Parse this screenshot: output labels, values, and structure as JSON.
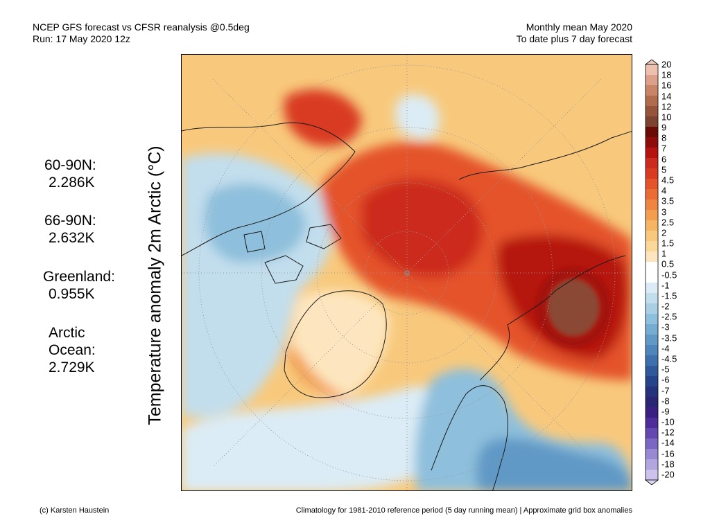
{
  "header": {
    "line1_left": "NCEP GFS forecast vs CFSR reanalysis @0.5deg",
    "line2_left": "Run: 17 May 2020 12z",
    "line1_right": "Monthly mean May 2020",
    "line2_right": "To date plus 7 day forecast"
  },
  "y_label": "Temperature anomaly 2m Arctic (°C)",
  "stats": [
    {
      "region": "60-90N:",
      "value": "2.286K"
    },
    {
      "region": "66-90N:",
      "value": "2.632K"
    },
    {
      "region": "Greenland:",
      "value": "0.955K"
    },
    {
      "region_line1": "Arctic",
      "region_line2": "Ocean:",
      "value": "2.729K"
    }
  ],
  "colorbar": {
    "labels": [
      "20",
      "18",
      "16",
      "14",
      "12",
      "10",
      "9",
      "8",
      "7",
      "6",
      "5",
      "4.5",
      "4",
      "3.5",
      "3",
      "2.5",
      "2",
      "1.5",
      "1",
      "0.5",
      "-0.5",
      "-1",
      "-1.5",
      "-2",
      "-2.5",
      "-3",
      "-3.5",
      "-4",
      "-4.5",
      "-5",
      "-6",
      "-7",
      "-8",
      "-9",
      "-10",
      "-12",
      "-14",
      "-16",
      "-18",
      "-20"
    ],
    "colors": [
      "#eec0b0",
      "#dda08a",
      "#c98567",
      "#b06c4c",
      "#96553a",
      "#7e4330",
      "#6b0b05",
      "#8e0d0a",
      "#b5130f",
      "#cc2a1e",
      "#d93a22",
      "#e4532b",
      "#ea6c34",
      "#ef8540",
      "#f39e4f",
      "#f6b562",
      "#f8c97c",
      "#fad899",
      "#fde6bf",
      "#ffffff",
      "#ffffff",
      "#dbecf6",
      "#c2deed",
      "#a9cfe5",
      "#8ebfdc",
      "#76acd1",
      "#6199c6",
      "#4e86bb",
      "#3d70ac",
      "#2f599a",
      "#26448a",
      "#25337c",
      "#2a2673",
      "#3b1f83",
      "#4f2c9a",
      "#6448b0",
      "#7b68c2",
      "#9889d2",
      "#b2a6df",
      "#cdc2ee"
    ],
    "top_arrow_color": "#eec8ba",
    "bottom_arrow_color": "#ddd5f6"
  },
  "footer": {
    "left": "(c) Karsten Haustein",
    "right": "Climatology for 1981-2010 reference period (5 day running mean) | Approximate grid box anomalies"
  }
}
